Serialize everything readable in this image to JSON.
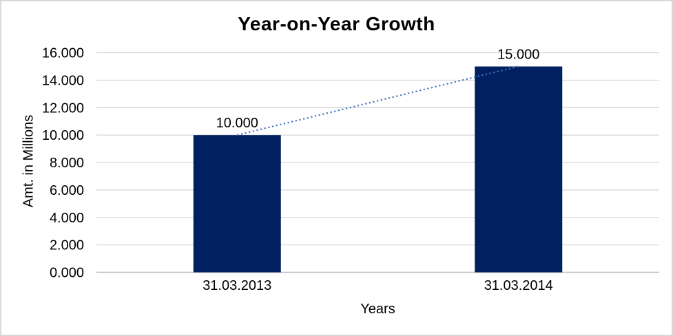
{
  "window": {
    "background": "#ffffff",
    "frame_border_color": "#d9d9d9"
  },
  "chart_data": {
    "type": "bar",
    "title": "Year-on-Year Growth",
    "xlabel": "Years",
    "ylabel": "Amt. in Millions",
    "categories": [
      "31.03.2013",
      "31.03.2014"
    ],
    "values": [
      10,
      15
    ],
    "data_labels": [
      "10.000",
      "15.000"
    ],
    "ylim": [
      0,
      16
    ],
    "ytick_step": 2,
    "ytick_labels": [
      "0.000",
      "2.000",
      "4.000",
      "6.000",
      "8.000",
      "10.000",
      "12.000",
      "14.000",
      "16.000"
    ],
    "grid": true,
    "legend_position": "none",
    "bar_color": "#002060",
    "gridline_color": "#d9d9d9",
    "axis_line_color": "#bfbfbf",
    "text_color": "#000000",
    "trendline": {
      "type": "linear",
      "style": "dotted",
      "color": "#4472c4",
      "from_point": [
        0,
        10
      ],
      "to_point": [
        1,
        15
      ]
    }
  }
}
